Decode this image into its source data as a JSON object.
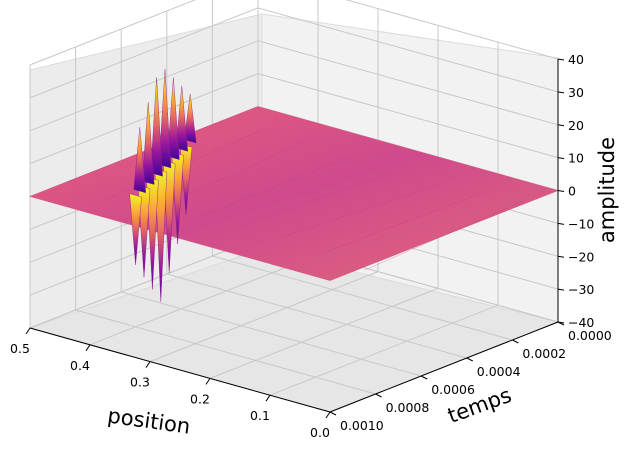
{
  "chart_data": {
    "type": "surface",
    "title": "",
    "xlabel": "position",
    "ylabel": "temps",
    "zlabel": "amplitude",
    "xlim": [
      0.0,
      0.5
    ],
    "ylim": [
      0.0,
      0.001
    ],
    "zlim": [
      -40,
      40
    ],
    "x_ticks": [
      "0.0",
      "0.1",
      "0.2",
      "0.3",
      "0.4",
      "0.5"
    ],
    "x_tick_values": [
      0.0,
      0.1,
      0.2,
      0.3,
      0.4,
      0.5
    ],
    "y_ticks": [
      "0.0000",
      "0.0002",
      "0.0004",
      "0.0006",
      "0.0008",
      "0.0010"
    ],
    "y_tick_values": [
      0.0,
      0.0002,
      0.0004,
      0.0006,
      0.0008,
      0.001
    ],
    "z_ticks": [
      "−40",
      "−30",
      "−20",
      "−10",
      "0",
      "10",
      "20",
      "30",
      "40"
    ],
    "z_tick_values": [
      -40,
      -30,
      -20,
      -10,
      0,
      10,
      20,
      30,
      40
    ],
    "colormap": "plasma",
    "grid": true,
    "surface_peak": {
      "position": 0.5,
      "temps": 0.0006,
      "amplitude_max": 32,
      "amplitude_min": -40
    }
  }
}
